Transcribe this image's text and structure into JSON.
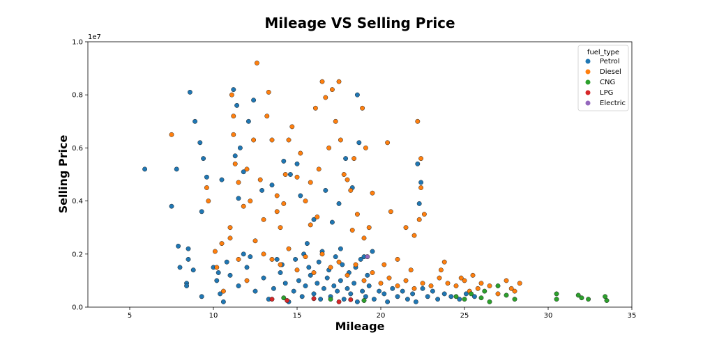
{
  "chart_data": {
    "type": "scatter",
    "title": "Mileage VS Selling Price",
    "xlabel": "Mileage",
    "ylabel": "Selling Price",
    "y_multiplier_label": "1e7",
    "xlim": [
      2.5,
      35
    ],
    "ylim": [
      0,
      10000000
    ],
    "x_ticks": [
      5,
      10,
      15,
      20,
      25,
      30,
      35
    ],
    "y_ticks": [
      0,
      2000000,
      4000000,
      6000000,
      8000000,
      10000000
    ],
    "y_tick_labels": [
      "0.0",
      "0.2",
      "0.4",
      "0.6",
      "0.8",
      "1.0"
    ],
    "x_tick_labels": [
      "5",
      "10",
      "15",
      "20",
      "25",
      "30",
      "35"
    ],
    "grid": false,
    "legend": {
      "title": "fuel_type",
      "placement": "top-right"
    },
    "series": [
      {
        "name": "Petrol",
        "color": "#1f77b4",
        "points": [
          [
            5.9,
            5200000
          ],
          [
            7.5,
            3800000
          ],
          [
            7.8,
            5200000
          ],
          [
            7.9,
            2300000
          ],
          [
            8.0,
            1500000
          ],
          [
            8.4,
            900000
          ],
          [
            8.4,
            800000
          ],
          [
            8.5,
            2200000
          ],
          [
            8.5,
            1800000
          ],
          [
            8.6,
            8100000
          ],
          [
            8.8,
            1400000
          ],
          [
            8.9,
            7000000
          ],
          [
            9.2,
            6200000
          ],
          [
            9.4,
            5600000
          ],
          [
            9.3,
            3600000
          ],
          [
            9.3,
            400000
          ],
          [
            9.6,
            4900000
          ],
          [
            10.0,
            1500000
          ],
          [
            10.2,
            1000000
          ],
          [
            10.5,
            4800000
          ],
          [
            10.4,
            500000
          ],
          [
            10.6,
            200000
          ],
          [
            11.2,
            8200000
          ],
          [
            11.4,
            7600000
          ],
          [
            11.3,
            5700000
          ],
          [
            11.5,
            4100000
          ],
          [
            11.6,
            6000000
          ],
          [
            11.8,
            5100000
          ],
          [
            12.1,
            7000000
          ],
          [
            12.4,
            7800000
          ],
          [
            12.9,
            4400000
          ],
          [
            13.5,
            4600000
          ],
          [
            14.2,
            5500000
          ],
          [
            14.6,
            5000000
          ],
          [
            15.0,
            5400000
          ],
          [
            15.2,
            4200000
          ],
          [
            15.6,
            2400000
          ],
          [
            16.0,
            3300000
          ],
          [
            16.7,
            4400000
          ],
          [
            17.1,
            3200000
          ],
          [
            17.5,
            3900000
          ],
          [
            17.9,
            5600000
          ],
          [
            18.3,
            4500000
          ],
          [
            18.6,
            8000000
          ],
          [
            18.7,
            6200000
          ],
          [
            19.0,
            1900000
          ],
          [
            19.5,
            2100000
          ],
          [
            22.2,
            5400000
          ],
          [
            22.4,
            4700000
          ],
          [
            22.3,
            3900000
          ],
          [
            11.0,
            1200000
          ],
          [
            11.5,
            800000
          ],
          [
            12.0,
            1500000
          ],
          [
            12.5,
            600000
          ],
          [
            13.0,
            1100000
          ],
          [
            13.3,
            300000
          ],
          [
            13.6,
            700000
          ],
          [
            14.0,
            1300000
          ],
          [
            14.3,
            900000
          ],
          [
            14.5,
            200000
          ],
          [
            14.8,
            600000
          ],
          [
            15.1,
            1000000
          ],
          [
            15.3,
            400000
          ],
          [
            15.5,
            800000
          ],
          [
            15.8,
            1200000
          ],
          [
            16.0,
            500000
          ],
          [
            16.2,
            900000
          ],
          [
            16.4,
            300000
          ],
          [
            16.6,
            700000
          ],
          [
            16.8,
            1100000
          ],
          [
            17.0,
            400000
          ],
          [
            17.2,
            800000
          ],
          [
            17.4,
            600000
          ],
          [
            17.6,
            1000000
          ],
          [
            17.8,
            300000
          ],
          [
            18.0,
            700000
          ],
          [
            18.2,
            500000
          ],
          [
            18.4,
            900000
          ],
          [
            18.6,
            200000
          ],
          [
            18.9,
            600000
          ],
          [
            19.1,
            400000
          ],
          [
            19.3,
            800000
          ],
          [
            19.6,
            300000
          ],
          [
            19.9,
            600000
          ],
          [
            20.2,
            500000
          ],
          [
            20.4,
            200000
          ],
          [
            20.7,
            700000
          ],
          [
            21.0,
            400000
          ],
          [
            21.3,
            600000
          ],
          [
            21.6,
            300000
          ],
          [
            21.9,
            500000
          ],
          [
            22.1,
            200000
          ],
          [
            22.5,
            700000
          ],
          [
            22.8,
            400000
          ],
          [
            23.1,
            600000
          ],
          [
            23.4,
            300000
          ],
          [
            23.8,
            500000
          ],
          [
            24.2,
            400000
          ],
          [
            24.7,
            300000
          ],
          [
            25.1,
            500000
          ],
          [
            25.6,
            400000
          ],
          [
            14.1,
            1600000
          ],
          [
            14.9,
            1800000
          ],
          [
            15.7,
            1500000
          ],
          [
            16.3,
            1700000
          ],
          [
            16.9,
            1400000
          ],
          [
            17.3,
            1900000
          ],
          [
            17.7,
            1600000
          ],
          [
            18.1,
            1300000
          ],
          [
            18.5,
            1500000
          ],
          [
            19.2,
            1200000
          ],
          [
            13.8,
            1800000
          ],
          [
            15.4,
            2000000
          ],
          [
            16.5,
            2100000
          ],
          [
            17.6,
            2200000
          ],
          [
            18.8,
            1800000
          ],
          [
            12.2,
            1900000
          ],
          [
            11.8,
            2000000
          ],
          [
            10.8,
            1700000
          ],
          [
            10.3,
            1300000
          ]
        ]
      },
      {
        "name": "Diesel",
        "color": "#ff7f0e",
        "points": [
          [
            7.5,
            6500000
          ],
          [
            9.6,
            4500000
          ],
          [
            9.7,
            4000000
          ],
          [
            10.1,
            2100000
          ],
          [
            10.2,
            1500000
          ],
          [
            10.6,
            600000
          ],
          [
            11.0,
            3000000
          ],
          [
            11.1,
            8000000
          ],
          [
            11.2,
            7200000
          ],
          [
            11.2,
            6500000
          ],
          [
            11.3,
            5400000
          ],
          [
            11.5,
            4700000
          ],
          [
            11.8,
            3800000
          ],
          [
            12.0,
            5200000
          ],
          [
            12.2,
            4000000
          ],
          [
            12.4,
            6300000
          ],
          [
            12.6,
            9200000
          ],
          [
            12.8,
            4800000
          ],
          [
            13.0,
            3300000
          ],
          [
            13.2,
            7200000
          ],
          [
            13.3,
            8100000
          ],
          [
            13.5,
            6300000
          ],
          [
            13.8,
            4200000
          ],
          [
            14.0,
            3000000
          ],
          [
            14.3,
            5000000
          ],
          [
            14.5,
            6300000
          ],
          [
            14.7,
            6800000
          ],
          [
            15.0,
            4900000
          ],
          [
            15.2,
            5800000
          ],
          [
            15.5,
            4000000
          ],
          [
            15.8,
            4700000
          ],
          [
            16.1,
            7500000
          ],
          [
            16.3,
            5200000
          ],
          [
            16.5,
            8500000
          ],
          [
            16.7,
            7900000
          ],
          [
            16.9,
            6000000
          ],
          [
            17.1,
            8200000
          ],
          [
            17.3,
            7000000
          ],
          [
            17.5,
            8500000
          ],
          [
            17.6,
            6300000
          ],
          [
            17.8,
            5000000
          ],
          [
            18.0,
            4800000
          ],
          [
            18.2,
            4400000
          ],
          [
            18.4,
            5600000
          ],
          [
            18.6,
            3500000
          ],
          [
            18.9,
            7500000
          ],
          [
            19.1,
            6000000
          ],
          [
            19.5,
            4300000
          ],
          [
            20.4,
            6200000
          ],
          [
            20.6,
            3600000
          ],
          [
            21.5,
            3000000
          ],
          [
            22.2,
            7000000
          ],
          [
            22.4,
            5600000
          ],
          [
            22.4,
            4500000
          ],
          [
            22.6,
            3500000
          ],
          [
            12.5,
            2500000
          ],
          [
            13.0,
            2000000
          ],
          [
            13.5,
            1800000
          ],
          [
            14.0,
            1600000
          ],
          [
            14.5,
            2200000
          ],
          [
            15.0,
            1400000
          ],
          [
            15.5,
            1900000
          ],
          [
            16.0,
            1300000
          ],
          [
            16.5,
            2000000
          ],
          [
            17.0,
            1500000
          ],
          [
            17.5,
            1700000
          ],
          [
            18.0,
            1200000
          ],
          [
            18.5,
            1600000
          ],
          [
            19.0,
            1000000
          ],
          [
            19.5,
            1300000
          ],
          [
            20.0,
            900000
          ],
          [
            20.5,
            1100000
          ],
          [
            21.0,
            800000
          ],
          [
            21.5,
            1000000
          ],
          [
            22.0,
            700000
          ],
          [
            22.5,
            900000
          ],
          [
            23.0,
            800000
          ],
          [
            23.5,
            1100000
          ],
          [
            23.8,
            1700000
          ],
          [
            24.0,
            900000
          ],
          [
            24.5,
            800000
          ],
          [
            25.0,
            1000000
          ],
          [
            25.3,
            600000
          ],
          [
            25.5,
            1200000
          ],
          [
            25.8,
            700000
          ],
          [
            26.0,
            900000
          ],
          [
            26.5,
            800000
          ],
          [
            27.0,
            500000
          ],
          [
            27.5,
            1000000
          ],
          [
            27.8,
            700000
          ],
          [
            28.0,
            600000
          ],
          [
            28.3,
            900000
          ],
          [
            12.0,
            1000000
          ],
          [
            11.5,
            1800000
          ],
          [
            11.0,
            2600000
          ],
          [
            10.5,
            2400000
          ],
          [
            13.8,
            3600000
          ],
          [
            14.2,
            3900000
          ],
          [
            15.8,
            3100000
          ],
          [
            16.2,
            3400000
          ],
          [
            18.3,
            2900000
          ],
          [
            19.0,
            2600000
          ],
          [
            19.3,
            3000000
          ],
          [
            21.0,
            1800000
          ],
          [
            22.0,
            2700000
          ],
          [
            22.3,
            3300000
          ],
          [
            20.2,
            1600000
          ],
          [
            21.8,
            1400000
          ],
          [
            23.6,
            1400000
          ],
          [
            24.8,
            1100000
          ]
        ]
      },
      {
        "name": "CNG",
        "color": "#2ca02c",
        "points": [
          [
            24.5,
            400000
          ],
          [
            25.0,
            300000
          ],
          [
            25.4,
            500000
          ],
          [
            26.0,
            350000
          ],
          [
            26.2,
            600000
          ],
          [
            26.5,
            200000
          ],
          [
            27.0,
            800000
          ],
          [
            27.5,
            450000
          ],
          [
            28.0,
            300000
          ],
          [
            30.5,
            500000
          ],
          [
            30.5,
            300000
          ],
          [
            31.8,
            450000
          ],
          [
            32.0,
            350000
          ],
          [
            32.4,
            300000
          ],
          [
            33.4,
            400000
          ],
          [
            33.5,
            250000
          ],
          [
            14.2,
            350000
          ],
          [
            17.0,
            300000
          ],
          [
            19.0,
            250000
          ]
        ]
      },
      {
        "name": "LPG",
        "color": "#d62728",
        "points": [
          [
            13.5,
            300000
          ],
          [
            14.4,
            250000
          ],
          [
            16.0,
            320000
          ],
          [
            17.5,
            200000
          ],
          [
            18.2,
            280000
          ]
        ]
      },
      {
        "name": "Electric",
        "color": "#9467bd",
        "points": [
          [
            19.2,
            1900000
          ]
        ]
      }
    ]
  }
}
